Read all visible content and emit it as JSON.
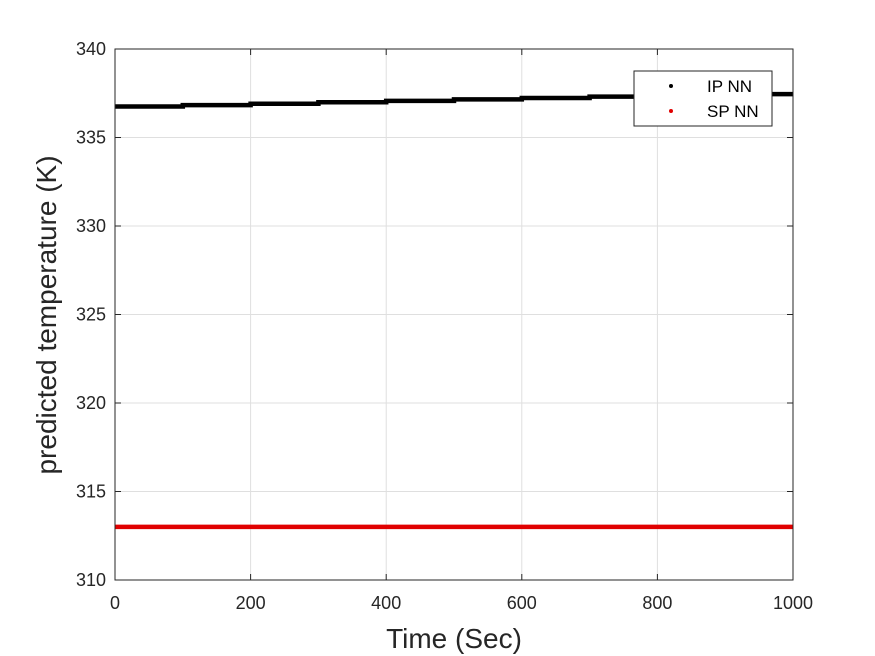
{
  "chart_data": {
    "type": "scatter",
    "title": "",
    "xlabel": "Time (Sec)",
    "ylabel": "predicted temperature (K)",
    "xlim": [
      0,
      1000
    ],
    "ylim": [
      310,
      340
    ],
    "xticks": [
      0,
      200,
      400,
      600,
      800,
      1000
    ],
    "yticks": [
      310,
      315,
      320,
      325,
      330,
      335,
      340
    ],
    "xtick_labels": [
      "0",
      "200",
      "400",
      "600",
      "800",
      "1000"
    ],
    "ytick_labels": [
      "310",
      "315",
      "320",
      "325",
      "330",
      "335",
      "340"
    ],
    "grid": true,
    "legend_position": "top-right",
    "series": [
      {
        "name": "IP NN",
        "color": "#000000",
        "marker": "dot",
        "x": [
          0,
          100,
          100,
          200,
          200,
          300,
          300,
          400,
          400,
          500,
          500,
          600,
          600,
          700,
          700,
          800,
          800,
          900,
          900,
          1000
        ],
        "y": [
          336.75,
          336.75,
          336.83,
          336.83,
          336.91,
          336.91,
          336.99,
          336.99,
          337.07,
          337.07,
          337.15,
          337.15,
          337.23,
          337.23,
          337.31,
          337.31,
          337.38,
          337.38,
          337.45,
          337.45
        ]
      },
      {
        "name": "SP NN",
        "color": "#e00000",
        "marker": "dot",
        "x": [
          0,
          1000
        ],
        "y": [
          313.0,
          313.0
        ]
      }
    ]
  }
}
